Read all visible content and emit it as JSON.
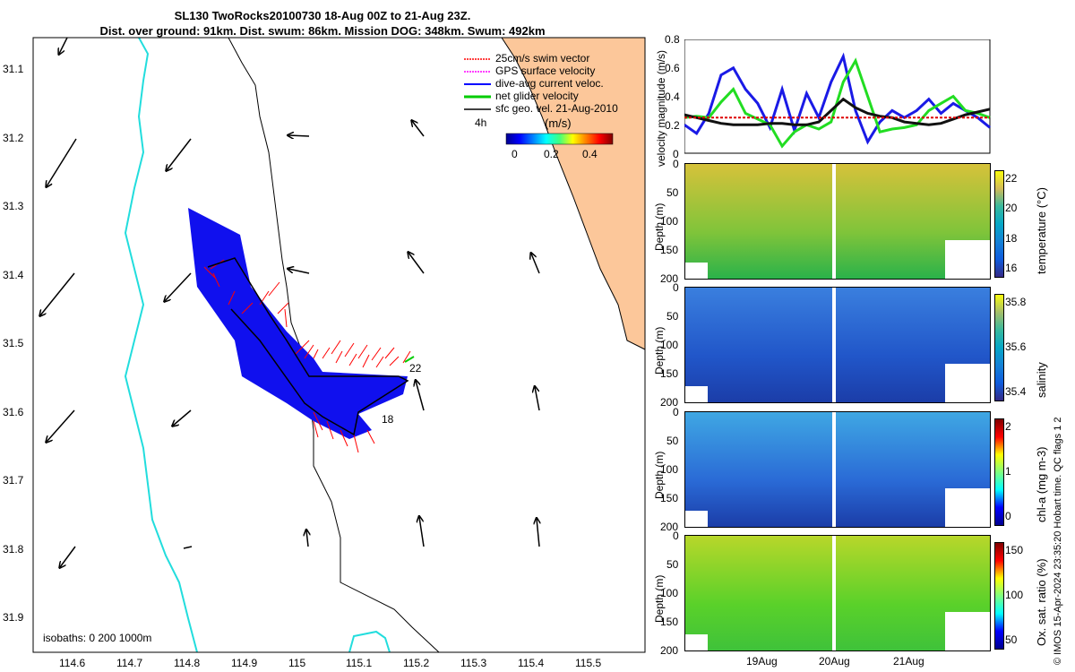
{
  "title": {
    "line1": "SL130 TwoRocks20100730 18-Aug 00Z to 21-Aug 23Z.",
    "line2": "Dist. over ground: 91km. Dist. swum: 86km. Mission DOG: 348km. Swum: 492km"
  },
  "map": {
    "x_ticks": [
      "114.6",
      "114.7",
      "114.8",
      "114.9",
      "115",
      "115.1",
      "115.2",
      "115.3",
      "115.4",
      "115.5"
    ],
    "y_ticks": [
      "31.1",
      "31.2",
      "31.3",
      "31.4",
      "31.5",
      "31.6",
      "31.7",
      "31.8",
      "31.9"
    ],
    "isobaths_label": "isobaths: 0   200  1000m",
    "legend": [
      {
        "label": "25cm/s swim vector",
        "color": "#ff0000"
      },
      {
        "label": "GPS surface velocity",
        "color": "#ff00ff"
      },
      {
        "label": "dive-avg current veloc.",
        "color": "#0000ff"
      },
      {
        "label": "net glider velocity",
        "color": "#00cc00"
      },
      {
        "label": "sfc geo. vel. 21-Aug-2010",
        "color": "#000000"
      }
    ],
    "four_h_label": "4h",
    "colorbar_title": "(m/s)",
    "colorbar_ticks": [
      "0",
      "0.2",
      "0.4"
    ],
    "track_day_labels": [
      "22",
      "18"
    ]
  },
  "chart_data": [
    {
      "type": "line",
      "title": "",
      "ylabel": "velocity magnitude (m/s)",
      "ylim": [
        0,
        0.8
      ],
      "yticks": [
        "0",
        "0.2",
        "0.4",
        "0.6",
        "0.8"
      ],
      "x": [
        0,
        0.04,
        0.08,
        0.12,
        0.16,
        0.2,
        0.24,
        0.28,
        0.32,
        0.36,
        0.4,
        0.44,
        0.48,
        0.52,
        0.56,
        0.6,
        0.64,
        0.68,
        0.72,
        0.76,
        0.8,
        0.84,
        0.88,
        0.92,
        0.96,
        1.0
      ],
      "series": [
        {
          "name": "dive-avg current",
          "color": "#1a1ae6",
          "values": [
            0.2,
            0.14,
            0.28,
            0.55,
            0.6,
            0.45,
            0.35,
            0.18,
            0.45,
            0.16,
            0.42,
            0.25,
            0.5,
            0.68,
            0.3,
            0.08,
            0.22,
            0.3,
            0.25,
            0.3,
            0.38,
            0.28,
            0.35,
            0.3,
            0.25,
            0.18
          ]
        },
        {
          "name": "net glider",
          "color": "#22dd22",
          "values": [
            0.25,
            0.26,
            0.25,
            0.36,
            0.45,
            0.28,
            0.24,
            0.2,
            0.05,
            0.15,
            0.2,
            0.17,
            0.22,
            0.5,
            0.65,
            0.4,
            0.15,
            0.17,
            0.18,
            0.2,
            0.3,
            0.35,
            0.4,
            0.3,
            0.28,
            0.25
          ]
        },
        {
          "name": "sfc geo",
          "color": "#111111",
          "values": [
            0.27,
            0.25,
            0.23,
            0.21,
            0.2,
            0.2,
            0.2,
            0.21,
            0.21,
            0.2,
            0.2,
            0.22,
            0.3,
            0.38,
            0.32,
            0.28,
            0.26,
            0.25,
            0.22,
            0.21,
            0.2,
            0.21,
            0.24,
            0.27,
            0.29,
            0.31
          ]
        },
        {
          "name": "swim",
          "color": "#dd0000",
          "values": [
            0.25,
            0.25,
            0.25,
            0.25,
            0.25,
            0.25,
            0.25,
            0.25,
            0.25,
            0.25,
            0.25,
            0.25,
            0.25,
            0.25,
            0.25,
            0.25,
            0.25,
            0.25,
            0.25,
            0.25,
            0.25,
            0.25,
            0.25,
            0.25,
            0.25,
            0.25
          ]
        }
      ]
    },
    {
      "type": "heatmap",
      "ylabel": "Depth (m)",
      "yticks": [
        "0",
        "50",
        "100",
        "150",
        "200"
      ],
      "colorbar_label": "temperature (°C)",
      "colorbar_ticks": [
        "16",
        "18",
        "20",
        "22"
      ]
    },
    {
      "type": "heatmap",
      "ylabel": "Depth (m)",
      "yticks": [
        "0",
        "50",
        "100",
        "150",
        "200"
      ],
      "colorbar_label": "salinity",
      "colorbar_ticks": [
        "35.4",
        "35.6",
        "35.8"
      ]
    },
    {
      "type": "heatmap",
      "ylabel": "Depth (m)",
      "yticks": [
        "0",
        "50",
        "100",
        "150",
        "200"
      ],
      "colorbar_label": "chl-a (mg m-3)",
      "colorbar_ticks": [
        "0",
        "1",
        "2"
      ]
    },
    {
      "type": "heatmap",
      "ylabel": "Depth (m)",
      "yticks": [
        "0",
        "50",
        "100",
        "150",
        "200"
      ],
      "colorbar_label": "Ox. sat. ratio (%)",
      "colorbar_ticks": [
        "50",
        "100",
        "150"
      ],
      "xticks": [
        "19Aug",
        "20Aug",
        "21Aug"
      ]
    }
  ],
  "footer_note": "© IMOS 15-Apr-2024 23:35:20 Hobart time. QC flags 1  2"
}
